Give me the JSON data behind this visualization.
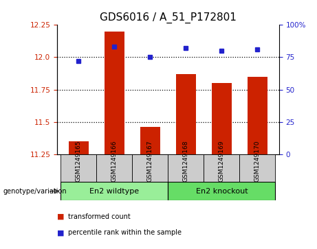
{
  "title": "GDS6016 / A_51_P172801",
  "samples": [
    "GSM1249165",
    "GSM1249166",
    "GSM1249167",
    "GSM1249168",
    "GSM1249169",
    "GSM1249170"
  ],
  "red_values": [
    11.35,
    12.2,
    11.46,
    11.87,
    11.8,
    11.85
  ],
  "blue_values": [
    72,
    83,
    75,
    82,
    80,
    81
  ],
  "ylim_left": [
    11.25,
    12.25
  ],
  "ylim_right": [
    0,
    100
  ],
  "yticks_left": [
    11.25,
    11.5,
    11.75,
    12.0,
    12.25
  ],
  "yticks_right": [
    0,
    25,
    50,
    75,
    100
  ],
  "ytick_labels_right": [
    "0",
    "25",
    "50",
    "75",
    "100%"
  ],
  "bar_color": "#cc2200",
  "dot_color": "#2222cc",
  "background_color": "#ffffff",
  "group1_label": "En2 wildtype",
  "group2_label": "En2 knockout",
  "group1_indices": [
    0,
    1,
    2
  ],
  "group2_indices": [
    3,
    4,
    5
  ],
  "group1_color": "#99ee99",
  "group2_color": "#66dd66",
  "sample_box_color": "#cccccc",
  "genotype_label": "genotype/variation",
  "legend1": "transformed count",
  "legend2": "percentile rank within the sample",
  "bar_width": 0.55,
  "title_fontsize": 11
}
